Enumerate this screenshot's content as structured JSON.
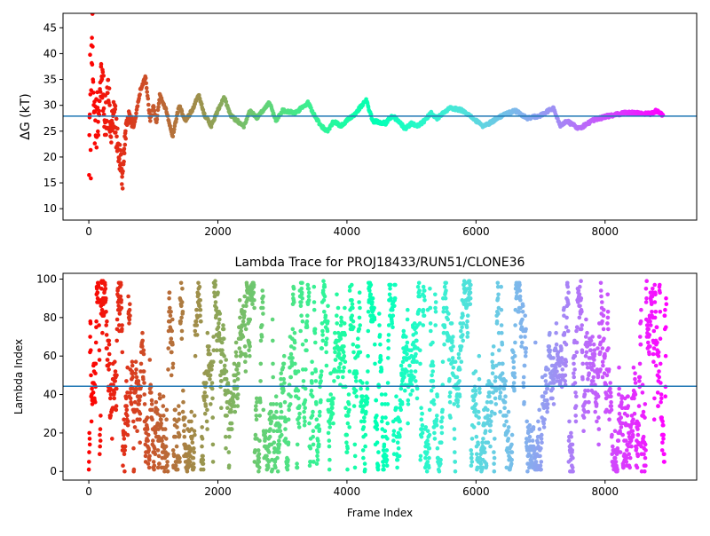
{
  "chart_data": [
    {
      "type": "scatter",
      "title": "",
      "xlabel": "",
      "ylabel": "ΔG (kT)",
      "xlim": [
        -400,
        9420
      ],
      "ylim": [
        7.8,
        47.8
      ],
      "xticks": [
        0,
        2000,
        4000,
        6000,
        8000
      ],
      "yticks": [
        10,
        15,
        20,
        25,
        30,
        35,
        40,
        45
      ],
      "grid": false,
      "colormap": "rainbow (red at frame 0 to violet at last frame)",
      "hline": {
        "y": 27.9,
        "color": "#1f77b4"
      },
      "trace_points": [
        [
          0,
          10
        ],
        [
          10,
          20
        ],
        [
          20,
          36
        ],
        [
          30,
          15
        ],
        [
          40,
          45
        ],
        [
          60,
          41
        ],
        [
          80,
          32
        ],
        [
          100,
          24
        ],
        [
          150,
          29
        ],
        [
          200,
          37
        ],
        [
          250,
          27
        ],
        [
          300,
          31
        ],
        [
          350,
          25
        ],
        [
          400,
          28
        ],
        [
          450,
          22
        ],
        [
          500,
          19
        ],
        [
          520,
          15
        ],
        [
          560,
          24
        ],
        [
          600,
          28
        ],
        [
          700,
          26
        ],
        [
          800,
          33
        ],
        [
          880,
          35.5
        ],
        [
          950,
          27
        ],
        [
          1000,
          30
        ],
        [
          1050,
          26.5
        ],
        [
          1100,
          32
        ],
        [
          1200,
          29
        ],
        [
          1300,
          24
        ],
        [
          1400,
          30
        ],
        [
          1500,
          27
        ],
        [
          1600,
          29
        ],
        [
          1700,
          32
        ],
        [
          1800,
          28
        ],
        [
          1900,
          26
        ],
        [
          2000,
          29
        ],
        [
          2100,
          31.5
        ],
        [
          2200,
          28
        ],
        [
          2300,
          27
        ],
        [
          2400,
          26
        ],
        [
          2500,
          29
        ],
        [
          2600,
          27.5
        ],
        [
          2700,
          29
        ],
        [
          2800,
          30.5
        ],
        [
          2900,
          27
        ],
        [
          3000,
          29
        ],
        [
          3200,
          28.5
        ],
        [
          3400,
          30.5
        ],
        [
          3500,
          28
        ],
        [
          3600,
          26
        ],
        [
          3700,
          25
        ],
        [
          3800,
          27
        ],
        [
          3900,
          26
        ],
        [
          4000,
          27
        ],
        [
          4100,
          28
        ],
        [
          4200,
          29.5
        ],
        [
          4300,
          31
        ],
        [
          4400,
          27
        ],
        [
          4600,
          26.5
        ],
        [
          4700,
          28
        ],
        [
          4800,
          27
        ],
        [
          4900,
          25.5
        ],
        [
          5000,
          26.5
        ],
        [
          5100,
          26
        ],
        [
          5200,
          27
        ],
        [
          5300,
          28.5
        ],
        [
          5400,
          27.5
        ],
        [
          5600,
          29.5
        ],
        [
          5800,
          29
        ],
        [
          5900,
          28
        ],
        [
          6000,
          27
        ],
        [
          6100,
          26
        ],
        [
          6200,
          26.5
        ],
        [
          6400,
          28
        ],
        [
          6600,
          29
        ],
        [
          6800,
          27.5
        ],
        [
          7000,
          28
        ],
        [
          7200,
          29.5
        ],
        [
          7300,
          26
        ],
        [
          7400,
          27
        ],
        [
          7600,
          25.5
        ],
        [
          7800,
          27
        ],
        [
          8000,
          27.8
        ],
        [
          8300,
          28.5
        ],
        [
          8500,
          28.5
        ],
        [
          8700,
          28.3
        ],
        [
          8800,
          29
        ],
        [
          8900,
          28
        ]
      ]
    },
    {
      "type": "scatter",
      "title": "Lambda Trace for PROJ18433/RUN51/CLONE36",
      "xlabel": "Frame Index",
      "ylabel": "Lambda Index",
      "xlim": [
        -400,
        9420
      ],
      "ylim": [
        -4.5,
        103
      ],
      "xticks": [
        0,
        2000,
        4000,
        6000,
        8000
      ],
      "yticks": [
        0,
        20,
        40,
        60,
        80,
        100
      ],
      "grid": false,
      "colormap": "rainbow (red at frame 0 to violet at last frame)",
      "hline": {
        "y": 44.3,
        "color": "#1f77b4"
      },
      "frame_range": [
        0,
        8950
      ],
      "lambda_range": [
        0,
        99
      ]
    }
  ]
}
